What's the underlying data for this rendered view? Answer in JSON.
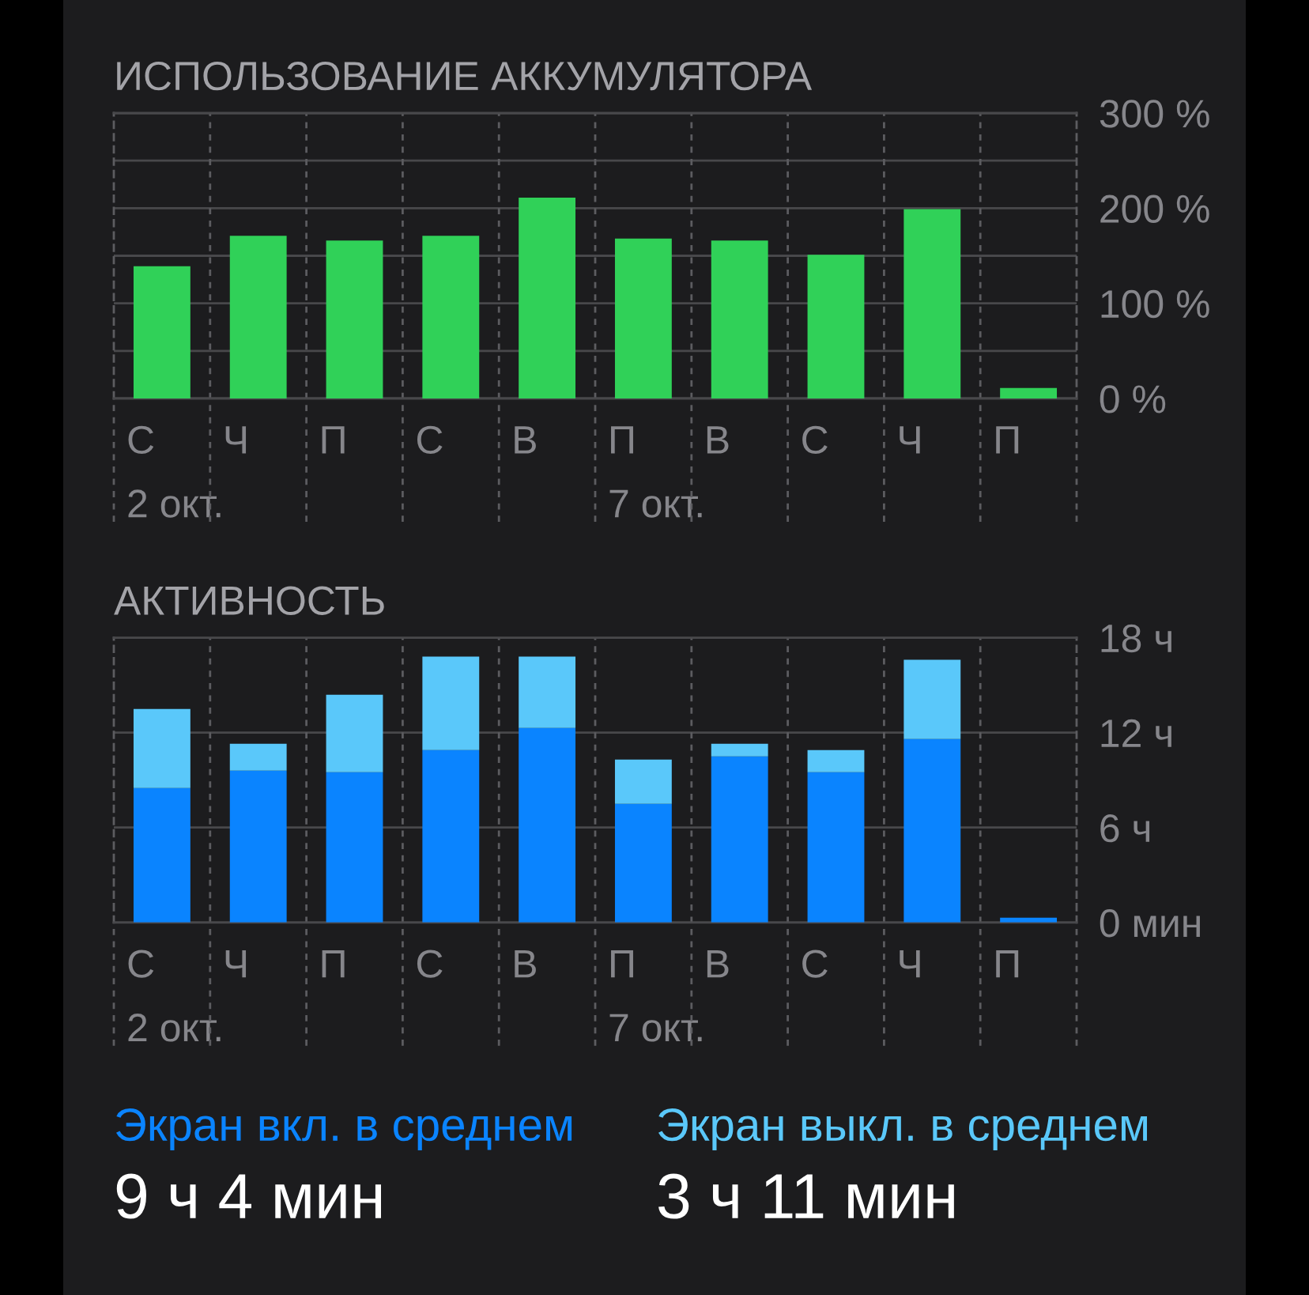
{
  "chart_data": [
    {
      "type": "bar",
      "title": "ИСПОЛЬЗОВАНИЕ АККУМУЛЯТОРА",
      "categories": [
        "С\n2 окт.",
        "Ч",
        "П",
        "С",
        "В",
        "П\n7 окт.",
        "В",
        "С",
        "Ч",
        "П"
      ],
      "values": [
        139,
        171,
        166,
        171,
        211,
        168,
        166,
        151,
        199,
        11
      ],
      "color": "#30d158",
      "ylim": [
        0,
        300
      ],
      "yticks": [
        {
          "value": 0,
          "label": "0 %"
        },
        {
          "value": 50,
          "label": null
        },
        {
          "value": 100,
          "label": "100 %"
        },
        {
          "value": 150,
          "label": null
        },
        {
          "value": 200,
          "label": "200 %"
        },
        {
          "value": 250,
          "label": null
        },
        {
          "value": 300,
          "label": "300 %"
        }
      ],
      "grid": true
    },
    {
      "type": "bar",
      "title": "АКТИВНОСТЬ",
      "categories": [
        "С\n2 окт.",
        "Ч",
        "П",
        "С",
        "В",
        "П\n7 окт.",
        "В",
        "С",
        "Ч",
        "П"
      ],
      "stacked": true,
      "series": [
        {
          "name": "Экран вкл. в среднем",
          "color": "#0a84ff",
          "values": [
            8.5,
            9.6,
            9.5,
            10.9,
            12.3,
            7.5,
            10.5,
            9.5,
            11.6,
            0.3
          ]
        },
        {
          "name": "Экран выкл. в среднем",
          "color": "#5ac8fa",
          "values": [
            5.0,
            1.7,
            4.9,
            5.9,
            4.5,
            2.8,
            0.8,
            1.4,
            5.0,
            0
          ]
        }
      ],
      "ylim": [
        0,
        18
      ],
      "yticks": [
        {
          "value": 0,
          "label": "0 мин"
        },
        {
          "value": 6,
          "label": "6 ч"
        },
        {
          "value": 12,
          "label": "12 ч"
        },
        {
          "value": 18,
          "label": "18 ч"
        }
      ],
      "grid": true,
      "legend": "bottom",
      "annotations": [
        "9 ч 4 мин",
        "3 ч 11 мин"
      ]
    }
  ]
}
